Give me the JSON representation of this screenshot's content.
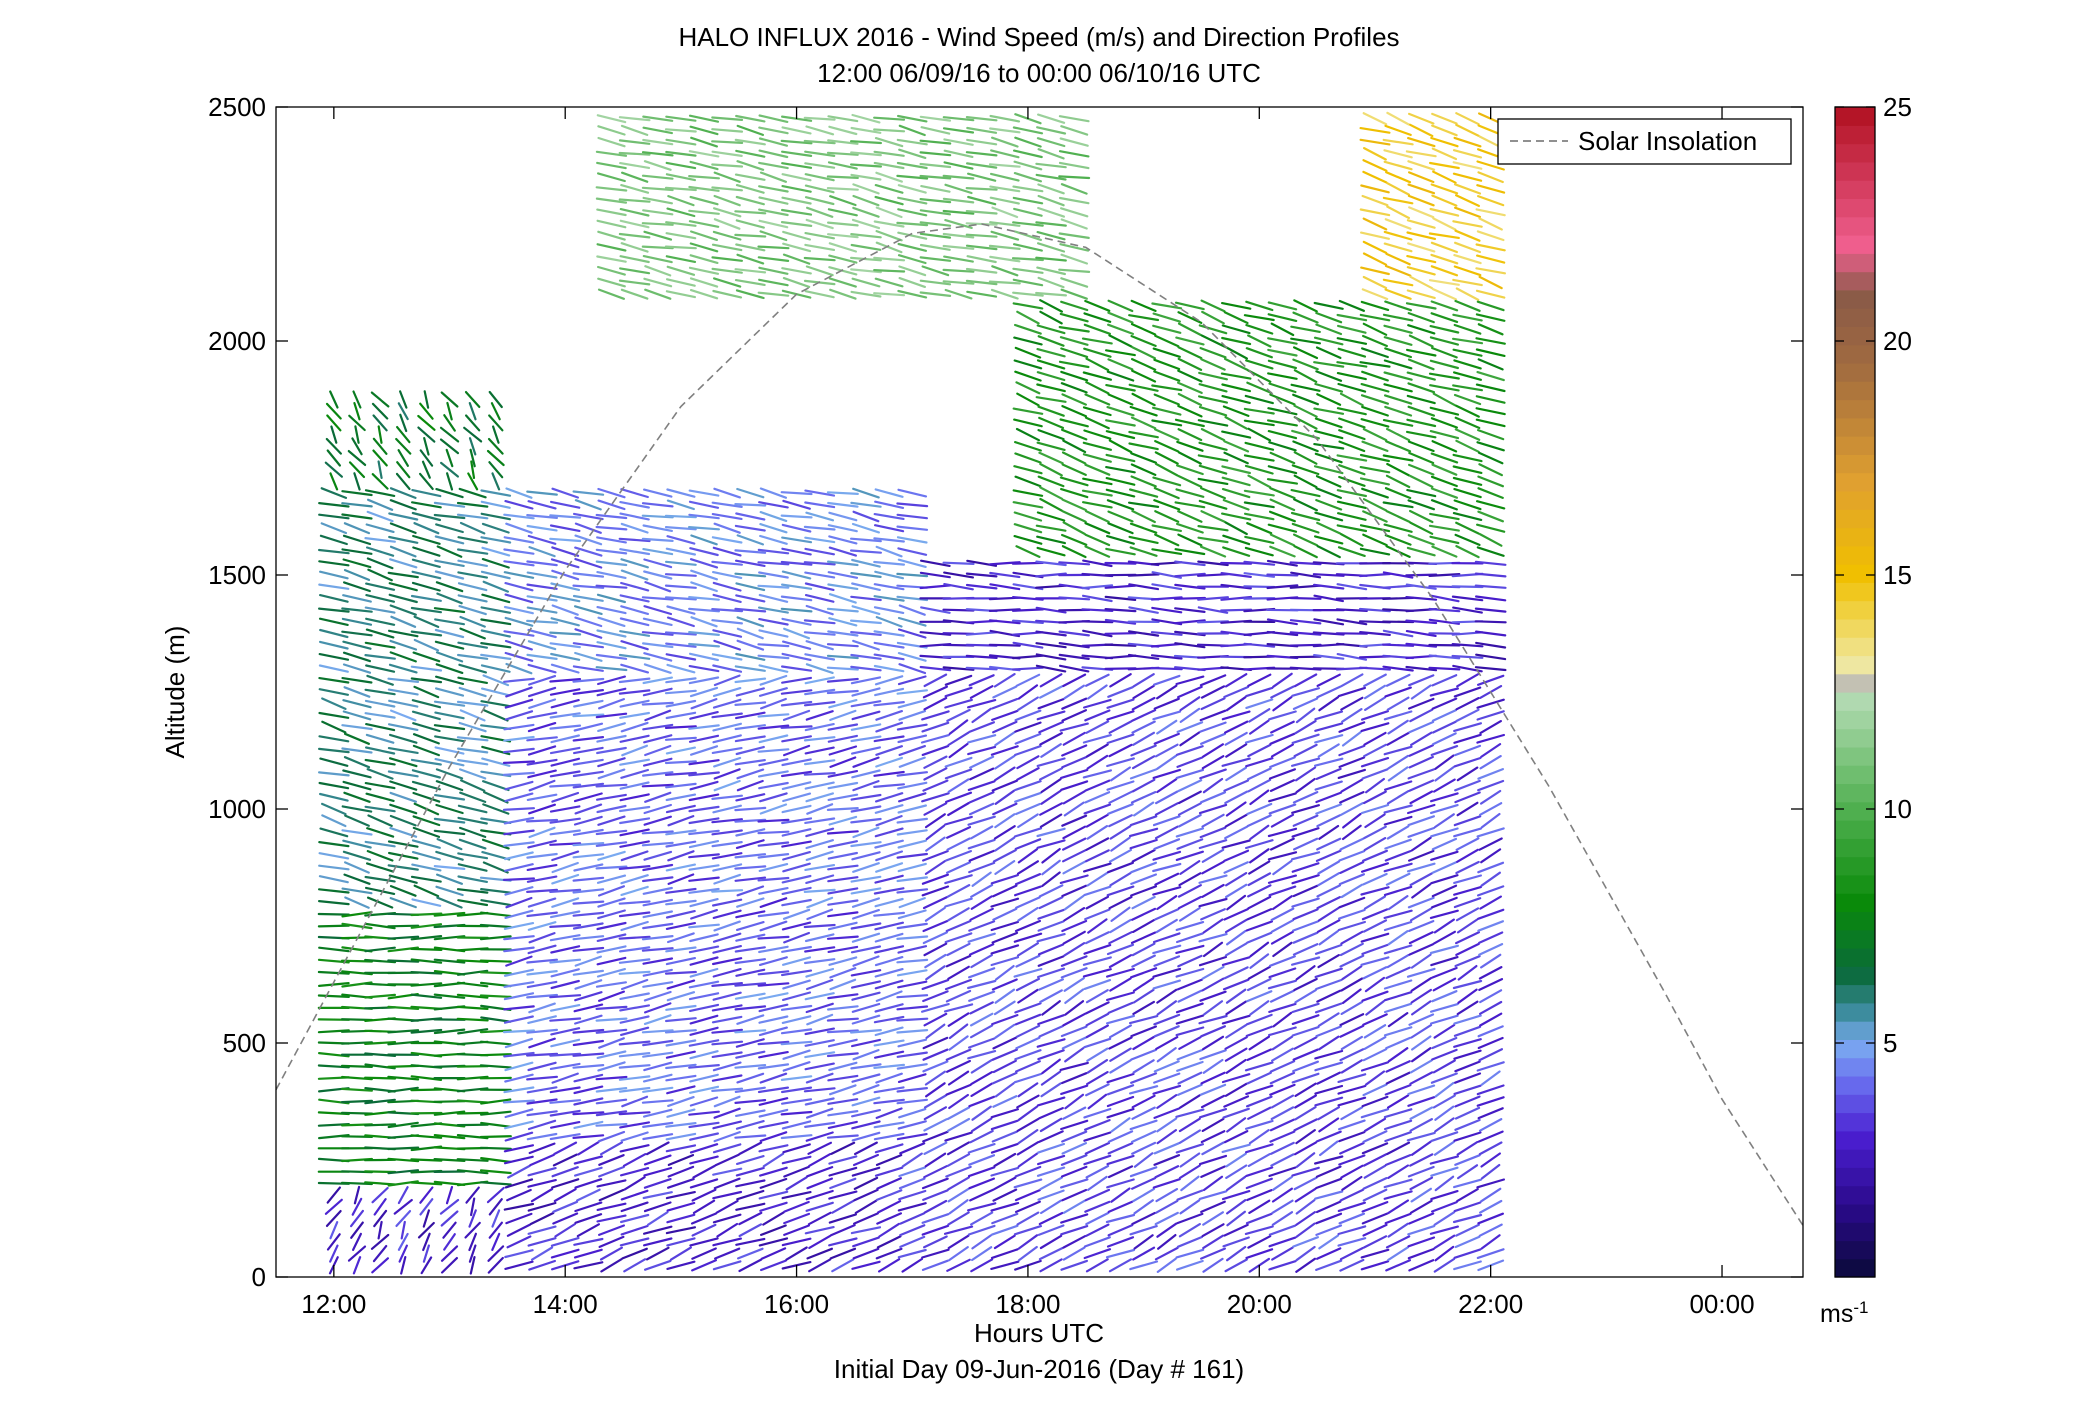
{
  "chart_data": {
    "type": "wind-barb-profile",
    "title": "HALO INFLUX 2016 - Wind Speed (m/s) and Direction Profiles",
    "subtitle": "12:00 06/09/16 to 00:00 06/10/16  UTC",
    "xlabel": "Hours UTC",
    "xlabel2": "Initial Day 09-Jun-2016 (Day # 161)",
    "ylabel": "Altitude (m)",
    "xlim_hours_utc": [
      11.5,
      24.7
    ],
    "ylim": [
      0,
      2500
    ],
    "x_ticks": [
      {
        "value": 12,
        "label": "12:00"
      },
      {
        "value": 14,
        "label": "14:00"
      },
      {
        "value": 16,
        "label": "16:00"
      },
      {
        "value": 18,
        "label": "18:00"
      },
      {
        "value": 20,
        "label": "20:00"
      },
      {
        "value": 22,
        "label": "22:00"
      },
      {
        "value": 24,
        "label": "00:00"
      }
    ],
    "y_ticks": [
      0,
      500,
      1000,
      1500,
      2000,
      2500
    ],
    "y_tick_labels": [
      "0",
      "500",
      "1000",
      "1500",
      "2000",
      "2500"
    ],
    "legend": {
      "entries": [
        "Solar Insolation"
      ],
      "placement": "top-right",
      "line_style": "dashed",
      "line_color": "#808080"
    },
    "colorbar": {
      "range": [
        0,
        25
      ],
      "ticks": [
        5,
        10,
        15,
        20,
        25
      ],
      "tick_labels": [
        "5",
        "10",
        "15",
        "20",
        "25"
      ],
      "unit": "ms",
      "unit_exponent": "-1",
      "colors": [
        {
          "v": 0,
          "c": "#0a0a3a"
        },
        {
          "v": 1.5,
          "c": "#2a0a8a"
        },
        {
          "v": 3,
          "c": "#4a1ed0"
        },
        {
          "v": 4.2,
          "c": "#6a70f0"
        },
        {
          "v": 5,
          "c": "#7aaaf0"
        },
        {
          "v": 5.7,
          "c": "#3a8a9a"
        },
        {
          "v": 6.5,
          "c": "#0a6a3a"
        },
        {
          "v": 8,
          "c": "#0a8a0a"
        },
        {
          "v": 10,
          "c": "#50b050"
        },
        {
          "v": 12.3,
          "c": "#b0dab0"
        },
        {
          "v": 12.6,
          "c": "#b8b8b8"
        },
        {
          "v": 13.1,
          "c": "#f0e8a0"
        },
        {
          "v": 15,
          "c": "#f0c000"
        },
        {
          "v": 17,
          "c": "#e0a030"
        },
        {
          "v": 19.5,
          "c": "#a06a40"
        },
        {
          "v": 21,
          "c": "#8a5a48"
        },
        {
          "v": 22,
          "c": "#f06090"
        },
        {
          "v": 25,
          "c": "#b01020"
        }
      ]
    },
    "solar_insolation_curve": {
      "peak_hour": 17.6,
      "peak_altitude": 2250,
      "points": [
        {
          "x": 11.5,
          "y": 400
        },
        {
          "x": 12.0,
          "y": 630
        },
        {
          "x": 13.0,
          "y": 1090
        },
        {
          "x": 14.0,
          "y": 1510
        },
        {
          "x": 15.0,
          "y": 1860
        },
        {
          "x": 16.0,
          "y": 2100
        },
        {
          "x": 17.0,
          "y": 2230
        },
        {
          "x": 17.6,
          "y": 2250
        },
        {
          "x": 18.5,
          "y": 2200
        },
        {
          "x": 19.5,
          "y": 2040
        },
        {
          "x": 20.5,
          "y": 1790
        },
        {
          "x": 21.5,
          "y": 1450
        },
        {
          "x": 22.5,
          "y": 1050
        },
        {
          "x": 23.5,
          "y": 610
        },
        {
          "x": 24.0,
          "y": 380
        },
        {
          "x": 24.7,
          "y": 110
        }
      ]
    },
    "wind_profiles": {
      "time_start": 12.0,
      "time_step_hours": 0.2,
      "profile_count": 51,
      "altitude_start": 25,
      "altitude_step": 25,
      "altitude_max_display": 2500,
      "regimes": [
        {
          "t": [
            12.0,
            13.4
          ],
          "alt": [
            200,
            800
          ],
          "speed_ms": 7.5,
          "dir_deg": 270,
          "note": "westerly, green"
        },
        {
          "t": [
            12.0,
            13.4
          ],
          "alt": [
            800,
            1700
          ],
          "speed_ms": 6.0,
          "dir_deg": 295
        },
        {
          "t": [
            12.0,
            13.4
          ],
          "alt": [
            1700,
            1900
          ],
          "speed_ms": 7.0,
          "dir_deg": 340
        },
        {
          "t": [
            13.6,
            17.0
          ],
          "alt": [
            300,
            1300
          ],
          "speed_ms": 4.0,
          "dir_deg": 250
        },
        {
          "t": [
            13.6,
            17.0
          ],
          "alt": [
            1300,
            1700
          ],
          "speed_ms": 4.5,
          "dir_deg": 290
        },
        {
          "t": [
            17.0,
            24.0
          ],
          "alt": [
            0,
            1300
          ],
          "speed_ms": 3.5,
          "dir_deg": 230
        },
        {
          "t": [
            17.0,
            24.0
          ],
          "alt": [
            1300,
            1550
          ],
          "speed_ms": 3.0,
          "dir_deg": 275
        },
        {
          "t": [
            18.0,
            23.0
          ],
          "alt": [
            1550,
            2100
          ],
          "speed_ms": 8.5,
          "dir_deg": 300
        },
        {
          "t": [
            14.4,
            18.4
          ],
          "alt": [
            2100,
            2500
          ],
          "speed_ms": 11.0,
          "dir_deg": 290
        },
        {
          "t": [
            21.0,
            24.0
          ],
          "alt": [
            1950,
            2500
          ],
          "speed_ms": 14.5,
          "dir_deg": 300
        }
      ]
    }
  }
}
